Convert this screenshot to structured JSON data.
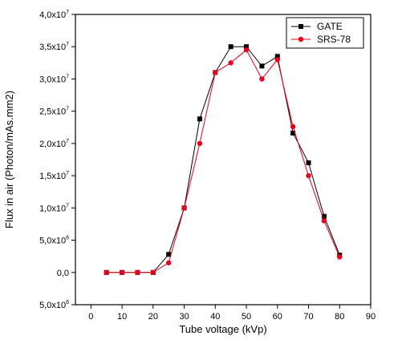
{
  "chart_data": {
    "type": "line",
    "xlabel": "Tube voltage (kVp)",
    "ylabel": "Flux in air (Photon/mAs.mm2)",
    "xlim": [
      -5,
      90
    ],
    "ylim": [
      -5000000,
      40000000
    ],
    "x_ticks": [
      0,
      10,
      20,
      30,
      40,
      50,
      60,
      70,
      80,
      90
    ],
    "x_tick_labels": [
      "0",
      "10",
      "20",
      "30",
      "40",
      "50",
      "60",
      "70",
      "80",
      "90"
    ],
    "y_ticks": [
      -5000000,
      0,
      5000000,
      10000000,
      15000000,
      20000000,
      25000000,
      30000000,
      35000000,
      40000000
    ],
    "y_tick_labels": [
      {
        "mantissa": "5,0x10",
        "exp": "6"
      },
      {
        "mantissa": "0,0",
        "exp": ""
      },
      {
        "mantissa": "5,0x10",
        "exp": "6"
      },
      {
        "mantissa": "1,0x10",
        "exp": "7"
      },
      {
        "mantissa": "1,5x10",
        "exp": "7"
      },
      {
        "mantissa": "2,0x10",
        "exp": "7"
      },
      {
        "mantissa": "2,5x10",
        "exp": "7"
      },
      {
        "mantissa": "3,0x10",
        "exp": "7"
      },
      {
        "mantissa": "3,5x10",
        "exp": "7"
      },
      {
        "mantissa": "4,0x10",
        "exp": "7"
      }
    ],
    "legend_position": "top-right",
    "series": [
      {
        "name": "GATE",
        "color": "#000000",
        "marker": "square",
        "x": [
          5,
          10,
          15,
          20,
          25,
          30,
          35,
          40,
          45,
          50,
          55,
          60,
          65,
          70,
          75,
          80
        ],
        "y": [
          0,
          0,
          0,
          0,
          2800000,
          10000000,
          23800000,
          31000000,
          35000000,
          35000000,
          32000000,
          33500000,
          21600000,
          17000000,
          8700000,
          2700000
        ]
      },
      {
        "name": "SRS-78",
        "color": "#e8001c",
        "marker": "circle",
        "x": [
          5,
          10,
          15,
          20,
          25,
          30,
          35,
          40,
          45,
          50,
          55,
          60,
          65,
          70,
          75,
          80
        ],
        "y": [
          0,
          0,
          0,
          0,
          1500000,
          10000000,
          20000000,
          31000000,
          32500000,
          34500000,
          30000000,
          33000000,
          22600000,
          15000000,
          8000000,
          2400000
        ]
      }
    ]
  }
}
